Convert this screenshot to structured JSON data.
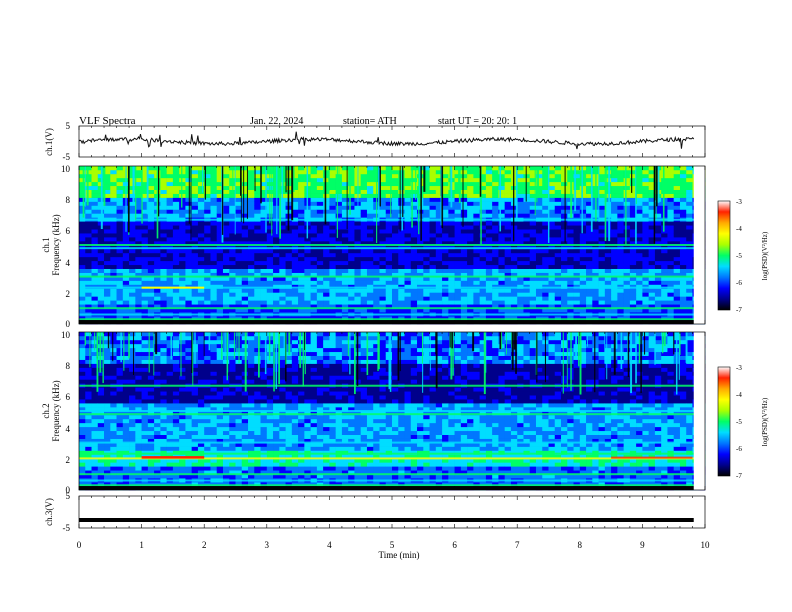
{
  "header": {
    "title": "VLF  Spectra",
    "date": "Jan. 22, 2024",
    "station": "station= ATH",
    "start": "start  UT  =   20: 20: 1"
  },
  "chart_data": {
    "type": "heatmap",
    "xlabel": "Time  (min)",
    "xlim": [
      0,
      10
    ],
    "xticks": [
      "0",
      "1",
      "2",
      "3",
      "4",
      "5",
      "6",
      "7",
      "8",
      "9",
      "10"
    ],
    "colors": {
      "colormap": [
        "#000000",
        "#00008b",
        "#0000ff",
        "#0077ff",
        "#00ddff",
        "#00ff66",
        "#aaff00",
        "#ffff00",
        "#ffaa00",
        "#ff2200",
        "#ffffff"
      ],
      "trace": "#111111"
    },
    "panels": [
      {
        "id": "ch1_wave",
        "kind": "waveform",
        "ylabel": "ch.1(V)",
        "ylim": [
          -5,
          5
        ],
        "yticks": [
          "5",
          "-5"
        ],
        "level": 0.0
      },
      {
        "id": "ch1_spec",
        "kind": "spectrogram",
        "ylabel_channel": "ch.1",
        "ylabel": "Frequency  (kHz)",
        "ylim": [
          0,
          10
        ],
        "yticks": [
          "0",
          "2",
          "4",
          "6",
          "8",
          "10"
        ],
        "colorbar_label": "log(PSD)(V²/Hz)",
        "colorbar_ticks": [
          "-3",
          "-4",
          "-5",
          "-6",
          "-7"
        ],
        "clim": [
          -7,
          -3
        ],
        "bands_khz": [
          0.3,
          0.6,
          1.0,
          2.3,
          3.0,
          4.8,
          5.0,
          6.6
        ]
      },
      {
        "id": "ch2_spec",
        "kind": "spectrogram",
        "ylabel_channel": "ch.2",
        "ylabel": "Frequency  (kHz)",
        "ylim": [
          0,
          10
        ],
        "yticks": [
          "0",
          "2",
          "4",
          "6",
          "8",
          "10"
        ],
        "colorbar_label": "log(PSD)(V²/Hz)",
        "colorbar_ticks": [
          "-3",
          "-4",
          "-5",
          "-6",
          "-7"
        ],
        "clim": [
          -7,
          -3
        ],
        "bands_khz": [
          0.3,
          0.6,
          1.0,
          2.0,
          2.3,
          3.0,
          4.8,
          5.0,
          6.6
        ]
      },
      {
        "id": "ch3_wave",
        "kind": "waveform",
        "ylabel": "ch.3(V)",
        "ylim": [
          -5,
          5
        ],
        "yticks": [
          "5",
          "-5"
        ],
        "level": -2.5
      }
    ]
  }
}
